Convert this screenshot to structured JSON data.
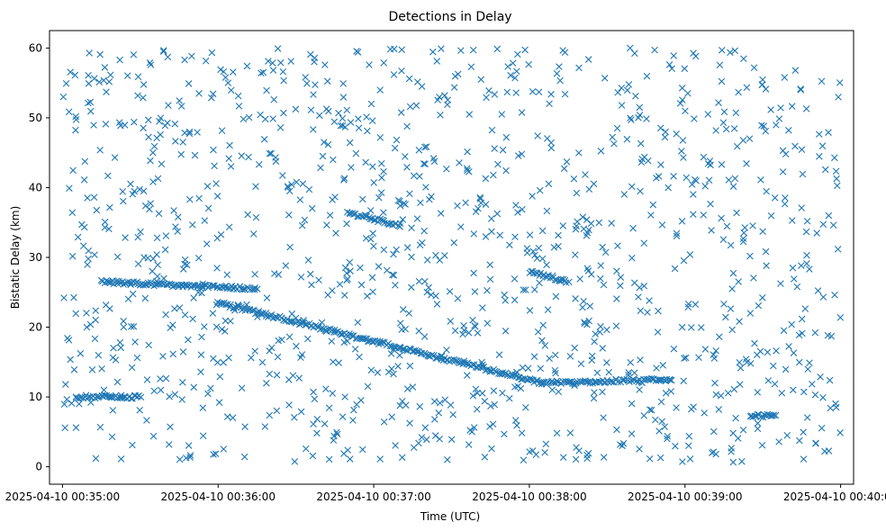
{
  "chart_data": {
    "type": "scatter",
    "title": "Detections in Delay",
    "xlabel": "Time (UTC)",
    "ylabel": "Bistatic Delay (km)",
    "marker": "x",
    "color": "#1f77b4",
    "xlim": [
      "2025-04-10 00:34:55",
      "2025-04-10 00:40:05"
    ],
    "ylim": [
      -2.5,
      62.5
    ],
    "x_ticks": [
      "2025-04-10 00:35:00",
      "2025-04-10 00:36:00",
      "2025-04-10 00:37:00",
      "2025-04-10 00:38:00",
      "2025-04-10 00:39:00",
      "2025-04-10 00:40:00"
    ],
    "y_ticks": [
      0,
      10,
      20,
      30,
      40,
      50,
      60
    ],
    "grid": false,
    "tracks": [
      {
        "name": "descending",
        "t_start": "2025-04-10 00:36:00",
        "t_end": "2025-04-10 00:38:05",
        "y_start": 23.5,
        "y_end": 12.0
      },
      {
        "name": "flat-26",
        "t_start": "2025-04-10 00:35:15",
        "t_end": "2025-04-10 00:36:15",
        "y_start": 26.5,
        "y_end": 25.5
      },
      {
        "name": "ridge-36",
        "t_start": "2025-04-10 00:36:50",
        "t_end": "2025-04-10 00:37:10",
        "y_start": 36.5,
        "y_end": 34.5
      },
      {
        "name": "ridge-28",
        "t_start": "2025-04-10 00:38:00",
        "t_end": "2025-04-10 00:38:15",
        "y_start": 28.0,
        "y_end": 26.5
      },
      {
        "name": "low-10",
        "t_start": "2025-04-10 00:35:05",
        "t_end": "2025-04-10 00:35:30",
        "y_start": 10.0,
        "y_end": 10.0
      },
      {
        "name": "low-12",
        "t_start": "2025-04-10 00:38:05",
        "t_end": "2025-04-10 00:38:55",
        "y_start": 12.0,
        "y_end": 12.5
      },
      {
        "name": "clump-7",
        "t_start": "2025-04-10 00:39:25",
        "t_end": "2025-04-10 00:39:35",
        "y_start": 7.3,
        "y_end": 7.3
      }
    ],
    "background_points": 1200,
    "background_y_range": [
      0.5,
      60
    ]
  }
}
